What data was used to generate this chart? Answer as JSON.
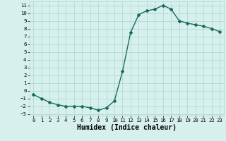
{
  "x": [
    0,
    1,
    2,
    3,
    4,
    5,
    6,
    7,
    8,
    9,
    10,
    11,
    12,
    13,
    14,
    15,
    16,
    17,
    18,
    19,
    20,
    21,
    22,
    23
  ],
  "y": [
    -0.5,
    -1.0,
    -1.5,
    -1.8,
    -2.0,
    -2.0,
    -2.0,
    -2.2,
    -2.5,
    -2.2,
    -1.3,
    2.5,
    7.5,
    9.8,
    10.3,
    10.5,
    11.0,
    10.5,
    9.0,
    8.7,
    8.5,
    8.3,
    8.0,
    7.6
  ],
  "line_color": "#1a6b5a",
  "marker": "D",
  "markersize": 2.0,
  "linewidth": 1.0,
  "xlabel": "Humidex (Indice chaleur)",
  "ylabel": "",
  "title": "",
  "ylim": [
    -3.2,
    11.5
  ],
  "xlim": [
    -0.5,
    23.5
  ],
  "yticks": [
    -3,
    -2,
    -1,
    0,
    1,
    2,
    3,
    4,
    5,
    6,
    7,
    8,
    9,
    10,
    11
  ],
  "xticks": [
    0,
    1,
    2,
    3,
    4,
    5,
    6,
    7,
    8,
    9,
    10,
    11,
    12,
    13,
    14,
    15,
    16,
    17,
    18,
    19,
    20,
    21,
    22,
    23
  ],
  "bg_color": "#d6f0ee",
  "grid_color": "#b0d4cf",
  "tick_fontsize": 5.2,
  "xlabel_fontsize": 7.0
}
